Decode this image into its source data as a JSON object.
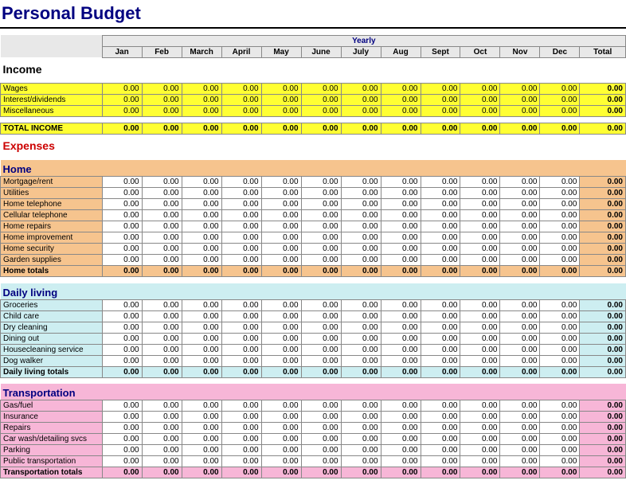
{
  "title": "Personal Budget",
  "yearly_label": "Yearly",
  "months": [
    "Jan",
    "Feb",
    "March",
    "April",
    "May",
    "June",
    "July",
    "Aug",
    "Sept",
    "Oct",
    "Nov",
    "Dec"
  ],
  "total_label": "Total",
  "colors": {
    "title": "#000080",
    "income_label": "#000000",
    "expenses_label": "#cc0000",
    "subsection_label": "#000080",
    "yellow": "#ffff33",
    "orange": "#f6c48e",
    "cyan": "#cdeef1",
    "pink": "#f7b6d7",
    "header_bg": "#e8e8e8",
    "border": "#888888"
  },
  "income": {
    "label": "Income",
    "rows": [
      {
        "label": "Wages",
        "values": [
          "0.00",
          "0.00",
          "0.00",
          "0.00",
          "0.00",
          "0.00",
          "0.00",
          "0.00",
          "0.00",
          "0.00",
          "0.00",
          "0.00"
        ],
        "total": "0.00"
      },
      {
        "label": "Interest/dividends",
        "values": [
          "0.00",
          "0.00",
          "0.00",
          "0.00",
          "0.00",
          "0.00",
          "0.00",
          "0.00",
          "0.00",
          "0.00",
          "0.00",
          "0.00"
        ],
        "total": "0.00"
      },
      {
        "label": "Miscellaneous",
        "values": [
          "0.00",
          "0.00",
          "0.00",
          "0.00",
          "0.00",
          "0.00",
          "0.00",
          "0.00",
          "0.00",
          "0.00",
          "0.00",
          "0.00"
        ],
        "total": "0.00"
      }
    ],
    "total": {
      "label": "TOTAL INCOME",
      "values": [
        "0.00",
        "0.00",
        "0.00",
        "0.00",
        "0.00",
        "0.00",
        "0.00",
        "0.00",
        "0.00",
        "0.00",
        "0.00",
        "0.00"
      ],
      "total": "0.00"
    }
  },
  "expenses_label": "Expenses",
  "home": {
    "label": "Home",
    "bg": "#f6c48e",
    "rows": [
      {
        "label": "Mortgage/rent",
        "values": [
          "0.00",
          "0.00",
          "0.00",
          "0.00",
          "0.00",
          "0.00",
          "0.00",
          "0.00",
          "0.00",
          "0.00",
          "0.00",
          "0.00"
        ],
        "total": "0.00"
      },
      {
        "label": "Utilities",
        "values": [
          "0.00",
          "0.00",
          "0.00",
          "0.00",
          "0.00",
          "0.00",
          "0.00",
          "0.00",
          "0.00",
          "0.00",
          "0.00",
          "0.00"
        ],
        "total": "0.00"
      },
      {
        "label": "Home telephone",
        "values": [
          "0.00",
          "0.00",
          "0.00",
          "0.00",
          "0.00",
          "0.00",
          "0.00",
          "0.00",
          "0.00",
          "0.00",
          "0.00",
          "0.00"
        ],
        "total": "0.00"
      },
      {
        "label": "Cellular telephone",
        "values": [
          "0.00",
          "0.00",
          "0.00",
          "0.00",
          "0.00",
          "0.00",
          "0.00",
          "0.00",
          "0.00",
          "0.00",
          "0.00",
          "0.00"
        ],
        "total": "0.00"
      },
      {
        "label": "Home repairs",
        "values": [
          "0.00",
          "0.00",
          "0.00",
          "0.00",
          "0.00",
          "0.00",
          "0.00",
          "0.00",
          "0.00",
          "0.00",
          "0.00",
          "0.00"
        ],
        "total": "0.00"
      },
      {
        "label": "Home improvement",
        "values": [
          "0.00",
          "0.00",
          "0.00",
          "0.00",
          "0.00",
          "0.00",
          "0.00",
          "0.00",
          "0.00",
          "0.00",
          "0.00",
          "0.00"
        ],
        "total": "0.00"
      },
      {
        "label": "Home security",
        "values": [
          "0.00",
          "0.00",
          "0.00",
          "0.00",
          "0.00",
          "0.00",
          "0.00",
          "0.00",
          "0.00",
          "0.00",
          "0.00",
          "0.00"
        ],
        "total": "0.00"
      },
      {
        "label": "Garden supplies",
        "values": [
          "0.00",
          "0.00",
          "0.00",
          "0.00",
          "0.00",
          "0.00",
          "0.00",
          "0.00",
          "0.00",
          "0.00",
          "0.00",
          "0.00"
        ],
        "total": "0.00"
      }
    ],
    "total": {
      "label": "Home totals",
      "values": [
        "0.00",
        "0.00",
        "0.00",
        "0.00",
        "0.00",
        "0.00",
        "0.00",
        "0.00",
        "0.00",
        "0.00",
        "0.00",
        "0.00"
      ],
      "total": "0.00"
    }
  },
  "daily": {
    "label": "Daily living",
    "bg": "#cdeef1",
    "rows": [
      {
        "label": "Groceries",
        "values": [
          "0.00",
          "0.00",
          "0.00",
          "0.00",
          "0.00",
          "0.00",
          "0.00",
          "0.00",
          "0.00",
          "0.00",
          "0.00",
          "0.00"
        ],
        "total": "0.00"
      },
      {
        "label": "Child care",
        "values": [
          "0.00",
          "0.00",
          "0.00",
          "0.00",
          "0.00",
          "0.00",
          "0.00",
          "0.00",
          "0.00",
          "0.00",
          "0.00",
          "0.00"
        ],
        "total": "0.00"
      },
      {
        "label": "Dry cleaning",
        "values": [
          "0.00",
          "0.00",
          "0.00",
          "0.00",
          "0.00",
          "0.00",
          "0.00",
          "0.00",
          "0.00",
          "0.00",
          "0.00",
          "0.00"
        ],
        "total": "0.00"
      },
      {
        "label": "Dining out",
        "values": [
          "0.00",
          "0.00",
          "0.00",
          "0.00",
          "0.00",
          "0.00",
          "0.00",
          "0.00",
          "0.00",
          "0.00",
          "0.00",
          "0.00"
        ],
        "total": "0.00"
      },
      {
        "label": "Housecleaning service",
        "values": [
          "0.00",
          "0.00",
          "0.00",
          "0.00",
          "0.00",
          "0.00",
          "0.00",
          "0.00",
          "0.00",
          "0.00",
          "0.00",
          "0.00"
        ],
        "total": "0.00"
      },
      {
        "label": "Dog walker",
        "values": [
          "0.00",
          "0.00",
          "0.00",
          "0.00",
          "0.00",
          "0.00",
          "0.00",
          "0.00",
          "0.00",
          "0.00",
          "0.00",
          "0.00"
        ],
        "total": "0.00"
      }
    ],
    "total": {
      "label": "Daily living totals",
      "values": [
        "0.00",
        "0.00",
        "0.00",
        "0.00",
        "0.00",
        "0.00",
        "0.00",
        "0.00",
        "0.00",
        "0.00",
        "0.00",
        "0.00"
      ],
      "total": "0.00"
    }
  },
  "transport": {
    "label": "Transportation",
    "bg": "#f7b6d7",
    "rows": [
      {
        "label": "Gas/fuel",
        "values": [
          "0.00",
          "0.00",
          "0.00",
          "0.00",
          "0.00",
          "0.00",
          "0.00",
          "0.00",
          "0.00",
          "0.00",
          "0.00",
          "0.00"
        ],
        "total": "0.00"
      },
      {
        "label": "Insurance",
        "values": [
          "0.00",
          "0.00",
          "0.00",
          "0.00",
          "0.00",
          "0.00",
          "0.00",
          "0.00",
          "0.00",
          "0.00",
          "0.00",
          "0.00"
        ],
        "total": "0.00"
      },
      {
        "label": "Repairs",
        "values": [
          "0.00",
          "0.00",
          "0.00",
          "0.00",
          "0.00",
          "0.00",
          "0.00",
          "0.00",
          "0.00",
          "0.00",
          "0.00",
          "0.00"
        ],
        "total": "0.00"
      },
      {
        "label": "Car wash/detailing svcs",
        "values": [
          "0.00",
          "0.00",
          "0.00",
          "0.00",
          "0.00",
          "0.00",
          "0.00",
          "0.00",
          "0.00",
          "0.00",
          "0.00",
          "0.00"
        ],
        "total": "0.00"
      },
      {
        "label": "Parking",
        "values": [
          "0.00",
          "0.00",
          "0.00",
          "0.00",
          "0.00",
          "0.00",
          "0.00",
          "0.00",
          "0.00",
          "0.00",
          "0.00",
          "0.00"
        ],
        "total": "0.00"
      },
      {
        "label": "Public transportation",
        "values": [
          "0.00",
          "0.00",
          "0.00",
          "0.00",
          "0.00",
          "0.00",
          "0.00",
          "0.00",
          "0.00",
          "0.00",
          "0.00",
          "0.00"
        ],
        "total": "0.00"
      }
    ],
    "total": {
      "label": "Transportation totals",
      "values": [
        "0.00",
        "0.00",
        "0.00",
        "0.00",
        "0.00",
        "0.00",
        "0.00",
        "0.00",
        "0.00",
        "0.00",
        "0.00",
        "0.00"
      ],
      "total": "0.00"
    }
  }
}
